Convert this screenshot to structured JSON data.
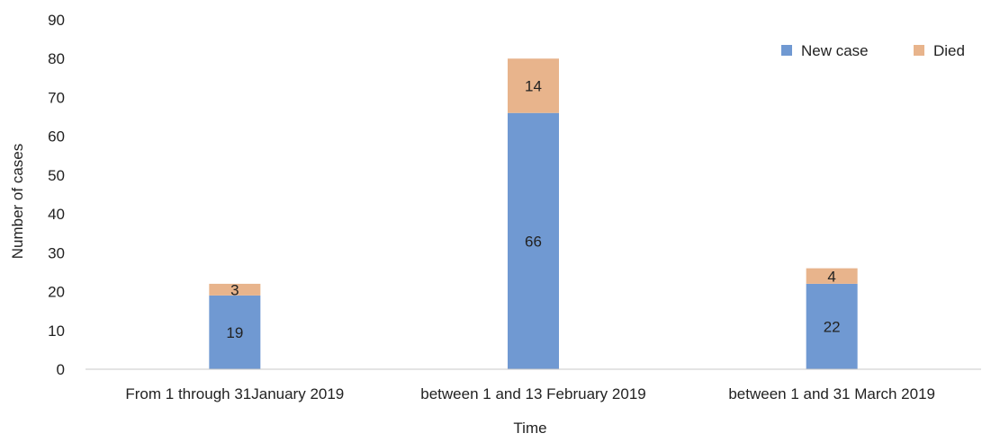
{
  "chart_data": {
    "type": "bar",
    "stacked": true,
    "title": "",
    "xlabel": "Time",
    "ylabel": "Number of cases",
    "ylim": [
      0,
      90
    ],
    "yticks": [
      0,
      10,
      20,
      30,
      40,
      50,
      60,
      70,
      80,
      90
    ],
    "grid": false,
    "legend_position": "top-right",
    "categories": [
      "From 1 through 31January 2019",
      "between 1 and 13 February 2019",
      "between 1 and 31 March 2019"
    ],
    "series": [
      {
        "name": "New case",
        "values": [
          19,
          66,
          22
        ],
        "color": "#7099D2"
      },
      {
        "name": "Died",
        "values": [
          3,
          14,
          4
        ],
        "color": "#E8B48C"
      }
    ]
  }
}
